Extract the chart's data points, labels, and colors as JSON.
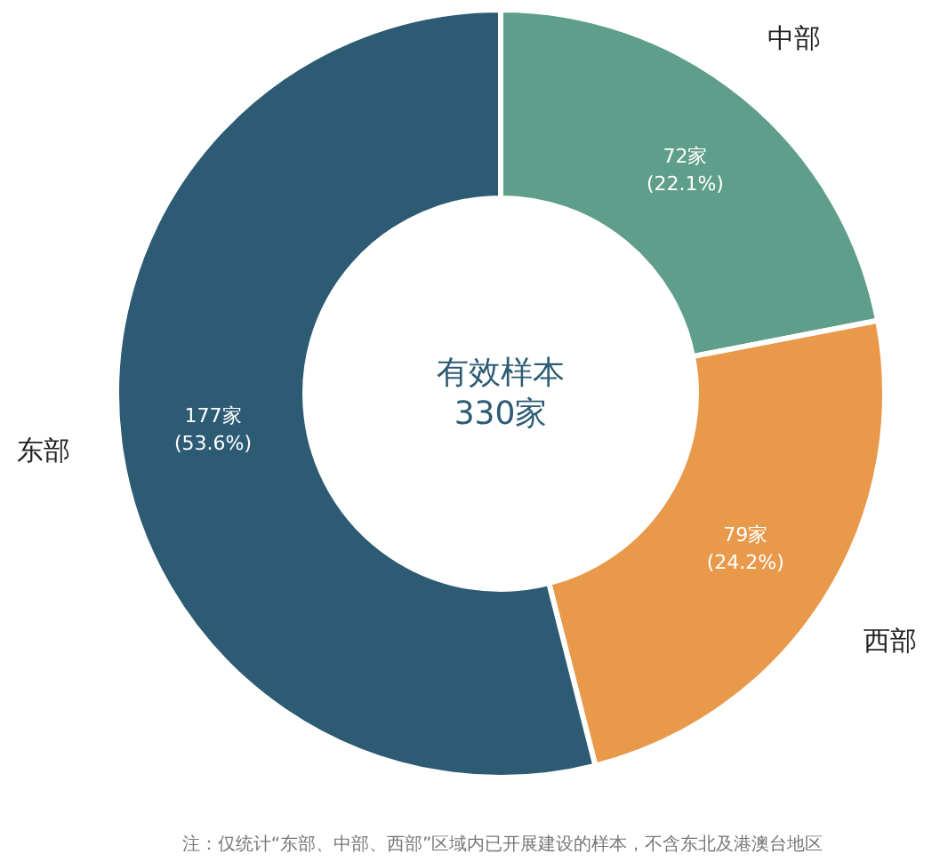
{
  "chart_data": {
    "type": "donut",
    "categories": [
      "中部",
      "西部",
      "东部"
    ],
    "values": [
      72,
      79,
      177
    ],
    "colors": [
      "#5f9e8a",
      "#e8994a",
      "#2d5b74"
    ],
    "value_labels": [
      "72家\n(22.1%)",
      "79家\n(24.2%)",
      "177家\n(53.6%)"
    ],
    "annotations": [
      "有效样本\n330家",
      "注：仅统计“东部、中部、西部”区域内已开展建设的样本，不含东北及港澳台地区"
    ]
  }
}
